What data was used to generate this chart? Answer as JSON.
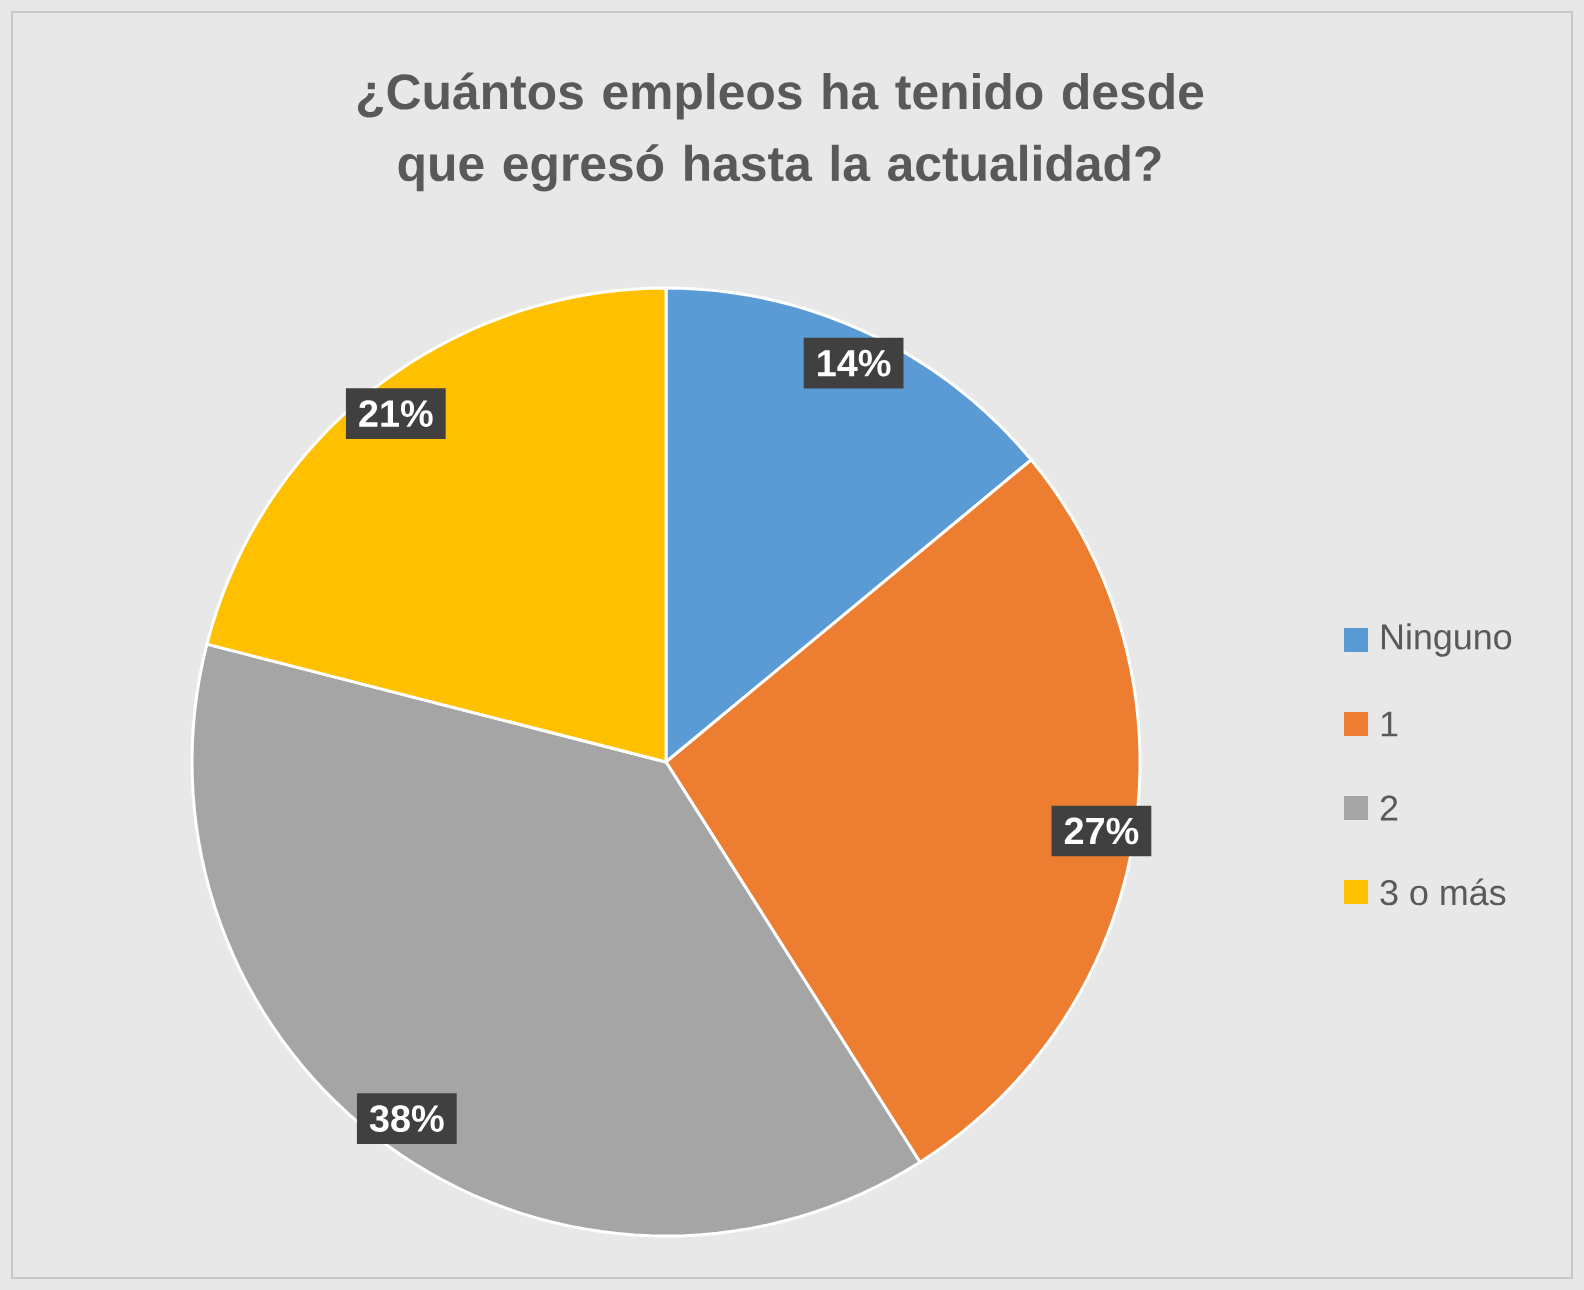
{
  "chart_data": {
    "type": "pie",
    "title": "¿Cuántos empleos ha tenido desde que egresó hasta la actualidad?",
    "categories": [
      "Ninguno",
      "1",
      "2",
      "3 o más"
    ],
    "values": [
      14,
      27,
      38,
      21
    ],
    "colors": [
      "#5b9bd5",
      "#ed7d31",
      "#a5a5a5",
      "#ffc000"
    ],
    "value_labels": [
      "14%",
      "27%",
      "38%",
      "21%"
    ],
    "legend": "right"
  }
}
